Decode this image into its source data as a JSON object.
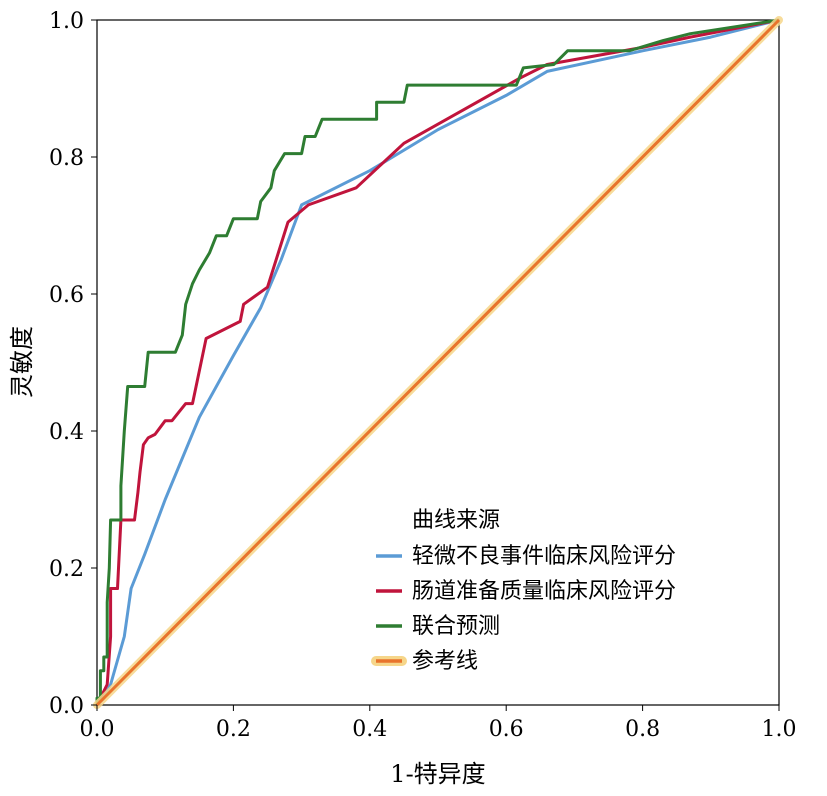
{
  "chart_data": {
    "type": "line",
    "xlabel": "1-特异度",
    "ylabel": "灵敏度",
    "xlim": [
      0,
      1
    ],
    "ylim": [
      0,
      1
    ],
    "xticks": [
      "0.0",
      "0.2",
      "0.4",
      "0.6",
      "0.8",
      "1.0"
    ],
    "yticks": [
      "0.0",
      "0.2",
      "0.4",
      "0.6",
      "0.8",
      "1.0"
    ],
    "grid": false,
    "legend": {
      "title": "曲线来源",
      "placement": "bottom-right"
    },
    "series": [
      {
        "name": "轻微不良事件临床风险评分",
        "color": "#5b9bd5",
        "points": [
          [
            0,
            0
          ],
          [
            0.01,
            0.01
          ],
          [
            0.02,
            0.03
          ],
          [
            0.04,
            0.1
          ],
          [
            0.05,
            0.17
          ],
          [
            0.07,
            0.22
          ],
          [
            0.1,
            0.3
          ],
          [
            0.15,
            0.42
          ],
          [
            0.2,
            0.51
          ],
          [
            0.24,
            0.58
          ],
          [
            0.27,
            0.65
          ],
          [
            0.3,
            0.73
          ],
          [
            0.4,
            0.78
          ],
          [
            0.5,
            0.84
          ],
          [
            0.6,
            0.89
          ],
          [
            0.66,
            0.925
          ],
          [
            0.8,
            0.955
          ],
          [
            0.9,
            0.975
          ],
          [
            1,
            1
          ]
        ]
      },
      {
        "name": "肠道准备质量临床风险评分",
        "color": "#c0143c",
        "points": [
          [
            0,
            0
          ],
          [
            0.01,
            0.02
          ],
          [
            0.015,
            0.03
          ],
          [
            0.02,
            0.1
          ],
          [
            0.02,
            0.17
          ],
          [
            0.03,
            0.17
          ],
          [
            0.035,
            0.27
          ],
          [
            0.055,
            0.27
          ],
          [
            0.06,
            0.31
          ],
          [
            0.063,
            0.34
          ],
          [
            0.068,
            0.38
          ],
          [
            0.075,
            0.39
          ],
          [
            0.085,
            0.395
          ],
          [
            0.1,
            0.415
          ],
          [
            0.11,
            0.415
          ],
          [
            0.13,
            0.44
          ],
          [
            0.14,
            0.44
          ],
          [
            0.16,
            0.535
          ],
          [
            0.21,
            0.56
          ],
          [
            0.215,
            0.585
          ],
          [
            0.25,
            0.61
          ],
          [
            0.28,
            0.705
          ],
          [
            0.31,
            0.73
          ],
          [
            0.38,
            0.755
          ],
          [
            0.45,
            0.82
          ],
          [
            0.62,
            0.915
          ],
          [
            0.66,
            0.935
          ],
          [
            0.8,
            0.96
          ],
          [
            0.87,
            0.975
          ],
          [
            1,
            1
          ]
        ]
      },
      {
        "name": "联合预测",
        "color": "#2e7d32",
        "points": [
          [
            0,
            0
          ],
          [
            0,
            0.01
          ],
          [
            0.005,
            0.01
          ],
          [
            0.005,
            0.05
          ],
          [
            0.01,
            0.05
          ],
          [
            0.01,
            0.07
          ],
          [
            0.015,
            0.07
          ],
          [
            0.015,
            0.15
          ],
          [
            0.018,
            0.2
          ],
          [
            0.02,
            0.27
          ],
          [
            0.035,
            0.27
          ],
          [
            0.035,
            0.32
          ],
          [
            0.04,
            0.4
          ],
          [
            0.045,
            0.465
          ],
          [
            0.07,
            0.465
          ],
          [
            0.075,
            0.515
          ],
          [
            0.115,
            0.515
          ],
          [
            0.125,
            0.54
          ],
          [
            0.13,
            0.585
          ],
          [
            0.14,
            0.615
          ],
          [
            0.15,
            0.635
          ],
          [
            0.165,
            0.66
          ],
          [
            0.175,
            0.685
          ],
          [
            0.19,
            0.685
          ],
          [
            0.2,
            0.71
          ],
          [
            0.235,
            0.71
          ],
          [
            0.24,
            0.735
          ],
          [
            0.255,
            0.755
          ],
          [
            0.26,
            0.78
          ],
          [
            0.275,
            0.805
          ],
          [
            0.3,
            0.805
          ],
          [
            0.305,
            0.83
          ],
          [
            0.32,
            0.83
          ],
          [
            0.33,
            0.855
          ],
          [
            0.41,
            0.855
          ],
          [
            0.41,
            0.88
          ],
          [
            0.45,
            0.88
          ],
          [
            0.455,
            0.905
          ],
          [
            0.615,
            0.905
          ],
          [
            0.625,
            0.93
          ],
          [
            0.67,
            0.935
          ],
          [
            0.69,
            0.955
          ],
          [
            0.78,
            0.955
          ],
          [
            0.83,
            0.97
          ],
          [
            0.87,
            0.98
          ],
          [
            1,
            1
          ]
        ]
      },
      {
        "name": "参考线",
        "color": "#e8742c",
        "points": [
          [
            0,
            0
          ],
          [
            1,
            1
          ]
        ]
      }
    ]
  }
}
